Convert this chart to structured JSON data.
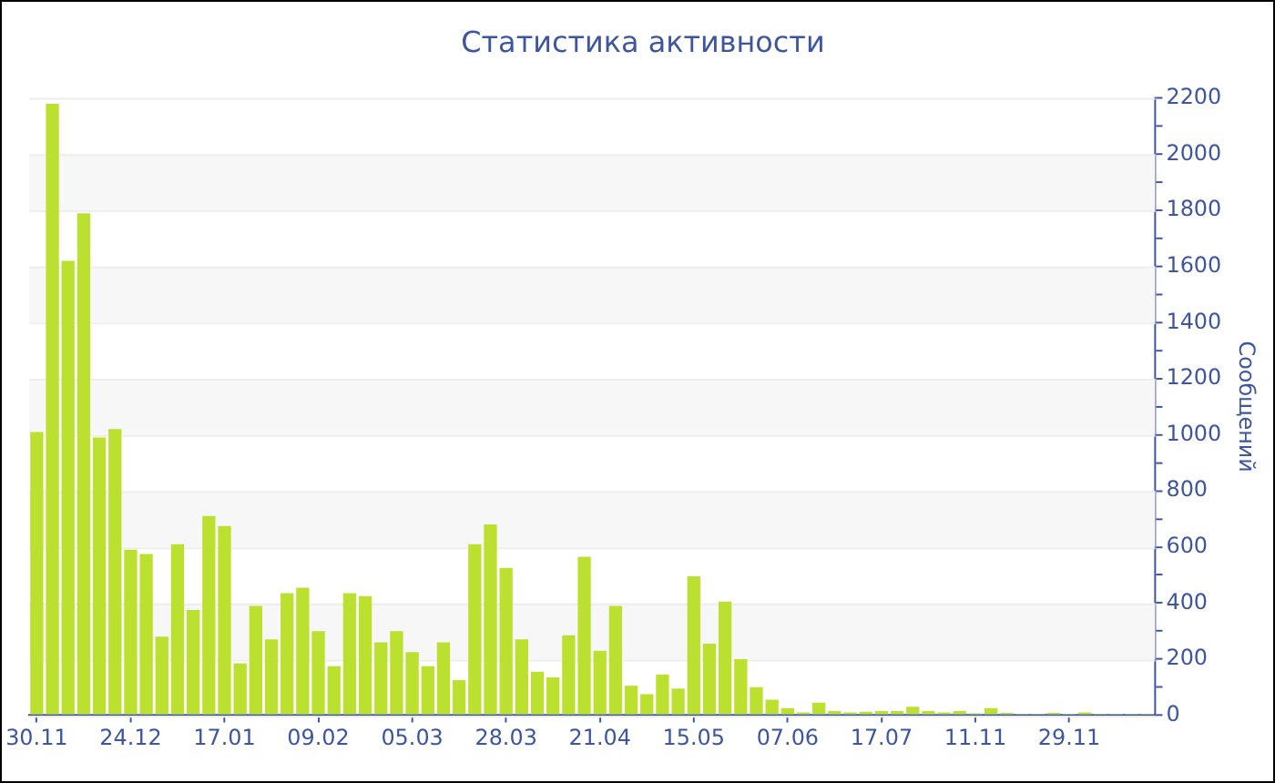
{
  "chart_data": {
    "type": "bar",
    "title": "Статистика активности",
    "y2label": "Сообщений",
    "categories": [
      "30.11",
      null,
      null,
      null,
      null,
      null,
      "24.12",
      null,
      null,
      null,
      null,
      null,
      "17.01",
      null,
      null,
      null,
      null,
      null,
      "09.02",
      null,
      null,
      null,
      null,
      null,
      "05.03",
      null,
      null,
      null,
      null,
      null,
      "28.03",
      null,
      null,
      null,
      null,
      null,
      "21.04",
      null,
      null,
      null,
      null,
      null,
      "15.05",
      null,
      null,
      null,
      null,
      null,
      "07.06",
      null,
      null,
      null,
      null,
      null,
      "17.07",
      null,
      null,
      null,
      null,
      null,
      "11.11",
      null,
      null,
      null,
      null,
      null,
      "29.11",
      null,
      null,
      null,
      null,
      null
    ],
    "series": [
      {
        "color": "#bce030",
        "axis": "y2",
        "values": [
          1010,
          2180,
          1620,
          1790,
          990,
          1020,
          590,
          575,
          280,
          610,
          375,
          710,
          675,
          185,
          390,
          270,
          435,
          455,
          300,
          175,
          435,
          425,
          260,
          300,
          225,
          175,
          260,
          125,
          610,
          680,
          525,
          270,
          155,
          135,
          285,
          565,
          230,
          390,
          105,
          75,
          145,
          95,
          495,
          255,
          405,
          200,
          100,
          55,
          25,
          10,
          45,
          15,
          10,
          12,
          15,
          15,
          30,
          15,
          10,
          15,
          7,
          25,
          8,
          5,
          5,
          8,
          5,
          10,
          5,
          5,
          5,
          5
        ]
      }
    ],
    "y2lim": [
      0,
      2200
    ],
    "y2ticks": [
      0,
      {
        "value": 100,
        "label": null
      },
      200,
      {
        "value": 300,
        "label": null
      },
      400,
      {
        "value": 500,
        "label": null
      },
      600,
      {
        "value": 700,
        "label": null
      },
      800,
      {
        "value": 900,
        "label": null
      },
      1000,
      {
        "value": 1100,
        "label": null
      },
      1200,
      {
        "value": 1300,
        "label": null
      },
      1400,
      {
        "value": 1500,
        "label": null
      },
      1600,
      {
        "value": 1700,
        "label": null
      },
      1800,
      {
        "value": 1900,
        "label": null
      },
      2000,
      {
        "value": 2100,
        "label": null
      },
      2200
    ],
    "grid": "y",
    "legend": false
  }
}
